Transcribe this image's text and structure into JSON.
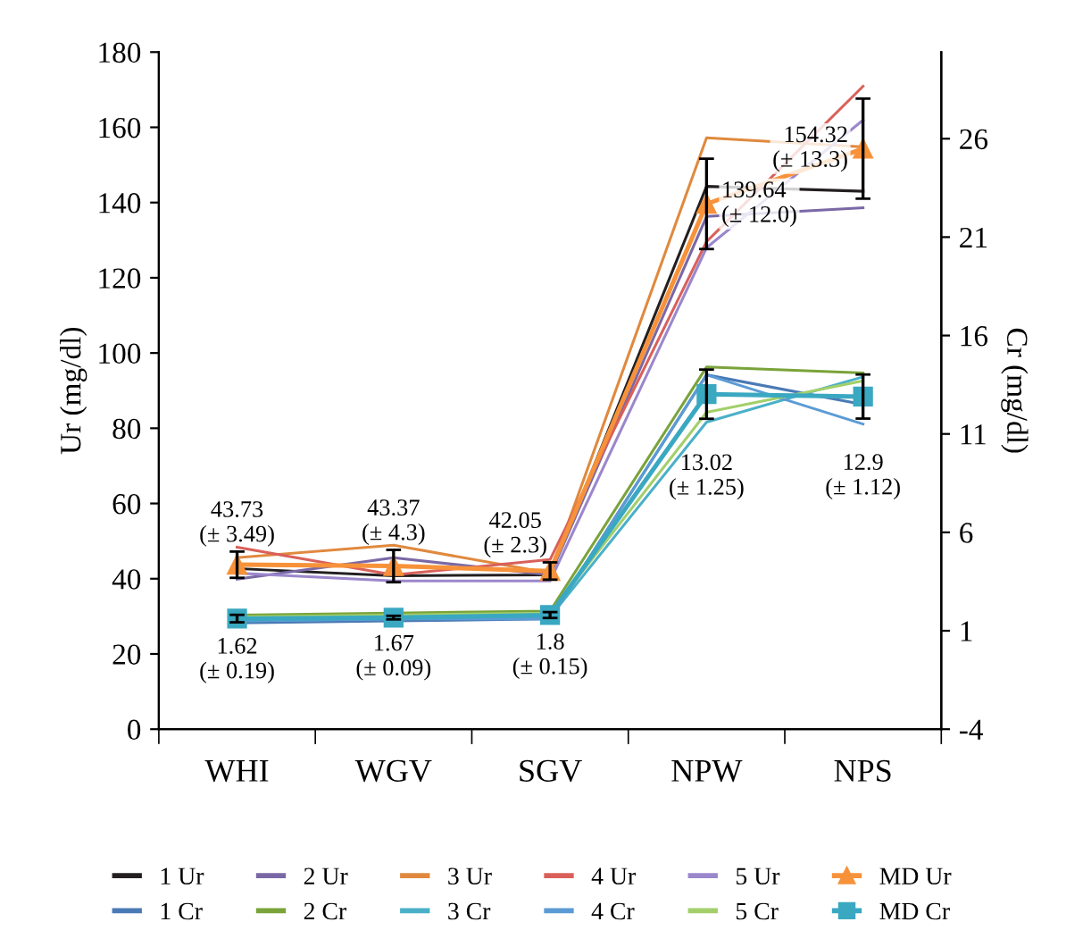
{
  "chart_data": {
    "type": "line",
    "categories": [
      "WHI",
      "WGV",
      "SGV",
      "NPW",
      "NPS"
    ],
    "ylabel": "Ur (mg/dl)",
    "y2label": "Cr (mg/dl)",
    "ylim": [
      0,
      180
    ],
    "yticks": [
      0,
      20,
      40,
      60,
      80,
      100,
      120,
      140,
      160,
      180
    ],
    "y2lim": [
      -4,
      30.4
    ],
    "y2ticks": [
      -4,
      1,
      6,
      11,
      16,
      21,
      26
    ],
    "grid": false,
    "legend": "bottom",
    "series": [
      {
        "name": "1 Ur",
        "color": "#231f20",
        "values": [
          42.7,
          40.8,
          41,
          144.3,
          143
        ]
      },
      {
        "name": "2 Ur",
        "color": "#7a68a6",
        "values": [
          39.9,
          45.6,
          41,
          136.3,
          138.6
        ]
      },
      {
        "name": "3 Ur",
        "color": "#e0893e",
        "values": [
          45.6,
          48.9,
          41.5,
          157.2,
          154.8
        ]
      },
      {
        "name": "4 Ur",
        "color": "#d9605a",
        "values": [
          48.4,
          41,
          45.1,
          129.6,
          170.9
        ]
      },
      {
        "name": "5 Ur",
        "color": "#9b87cc",
        "values": [
          41.5,
          39.4,
          39.4,
          128,
          161.9
        ]
      },
      {
        "name": "MD Ur",
        "color": "#f7923a",
        "marker": "triangle",
        "values": [
          43.73,
          43.37,
          42.05,
          139.64,
          154.32
        ],
        "errors": [
          3.49,
          4.3,
          2.3,
          12.0,
          13.3
        ],
        "value_labels": [
          "43.73\n(± 3.49)",
          "43.37\n(± 4.3)",
          "42.05\n(± 2.3)",
          "139.64\n(± 12.0)",
          "154.32\n(± 13.3)"
        ]
      },
      {
        "name": "1 Cr",
        "color": "#4a7ab5",
        "axis": "y2",
        "values": [
          1.4,
          1.5,
          1.6,
          14.0,
          12.5
        ]
      },
      {
        "name": "2 Cr",
        "color": "#7aa33a",
        "axis": "y2",
        "values": [
          1.8,
          1.9,
          2.0,
          14.4,
          14.1
        ]
      },
      {
        "name": "3 Cr",
        "color": "#4ab0c8",
        "axis": "y2",
        "values": [
          1.5,
          1.6,
          1.7,
          11.6,
          13.9
        ]
      },
      {
        "name": "4 Cr",
        "color": "#5b9bd5",
        "axis": "y2",
        "values": [
          1.5,
          1.6,
          1.6,
          14.0,
          11.5
        ]
      },
      {
        "name": "5 Cr",
        "color": "#a3cf6b",
        "axis": "y2",
        "values": [
          1.7,
          1.8,
          1.9,
          12.1,
          13.7
        ]
      },
      {
        "name": "MD Cr",
        "color": "#3aa8c1",
        "axis": "y2",
        "marker": "square",
        "values": [
          1.62,
          1.67,
          1.8,
          13.02,
          12.9
        ],
        "errors": [
          0.19,
          0.09,
          0.15,
          1.25,
          1.12
        ],
        "value_labels": [
          "1.62\n(± 0.19)",
          "1.67\n(± 0.09)",
          "1.8\n(± 0.15)",
          "13.02\n(± 1.25)",
          "12.9\n(± 1.12)"
        ]
      }
    ]
  }
}
